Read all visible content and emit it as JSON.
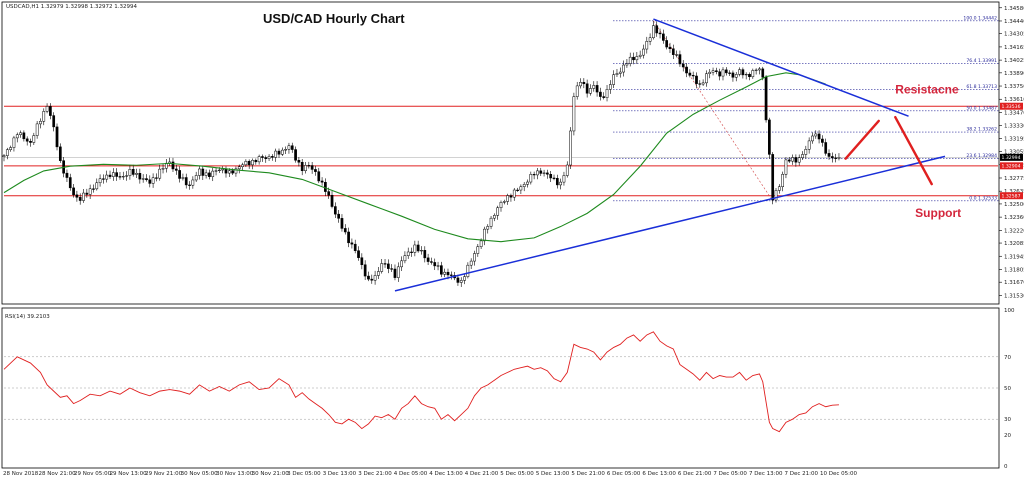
{
  "chart_data": [
    {
      "type": "candlestick",
      "symbol_header": "USDCAD,H1  1.32979 1.32998 1.32972 1.32994",
      "title": "USD/CAD Hourly Chart",
      "y_ticks": [
        "1.34580",
        "1.34440",
        "1.34305",
        "1.34165",
        "1.34025",
        "1.33890",
        "1.33750",
        "1.33610",
        "1.33470",
        "1.33330",
        "1.33195",
        "1.33055",
        "1.32915",
        "1.32775",
        "1.32635",
        "1.32500",
        "1.32360",
        "1.32220",
        "1.32085",
        "1.31945",
        "1.31805",
        "1.31670",
        "1.31530"
      ],
      "ylim": [
        1.3146,
        1.3462
      ],
      "x_ticks": [
        "28 Nov 2018",
        "28 Nov 21:00",
        "29 Nov 05:00",
        "29 Nov 13:00",
        "29 Nov 21:00",
        "30 Nov 05:00",
        "30 Nov 13:00",
        "30 Nov 21:00",
        "3 Dec 05:00",
        "3 Dec 13:00",
        "3 Dec 21:00",
        "4 Dec 05:00",
        "4 Dec 13:00",
        "4 Dec 21:00",
        "5 Dec 05:00",
        "5 Dec 13:00",
        "5 Dec 21:00",
        "6 Dec 05:00",
        "6 Dec 13:00",
        "6 Dec 21:00",
        "7 Dec 05:00",
        "7 Dec 13:00",
        "7 Dec 21:00",
        "10 Dec 05:00"
      ],
      "close_path": [
        [
          0,
          1.33
        ],
        [
          4,
          1.3325
        ],
        [
          8,
          1.3315
        ],
        [
          11,
          1.334
        ],
        [
          13,
          1.3355
        ],
        [
          15,
          1.333
        ],
        [
          17,
          1.3295
        ],
        [
          19,
          1.3275
        ],
        [
          21,
          1.326
        ],
        [
          23,
          1.3255
        ],
        [
          26,
          1.3265
        ],
        [
          29,
          1.3275
        ],
        [
          32,
          1.3282
        ],
        [
          35,
          1.3278
        ],
        [
          38,
          1.3284
        ],
        [
          41,
          1.3279
        ],
        [
          44,
          1.3272
        ],
        [
          47,
          1.3285
        ],
        [
          50,
          1.3295
        ],
        [
          53,
          1.3278
        ],
        [
          56,
          1.327
        ],
        [
          59,
          1.3285
        ],
        [
          62,
          1.328
        ],
        [
          65,
          1.3288
        ],
        [
          68,
          1.3282
        ],
        [
          71,
          1.329
        ],
        [
          74,
          1.3294
        ],
        [
          77,
          1.3298
        ],
        [
          80,
          1.33
        ],
        [
          83,
          1.3304
        ],
        [
          86,
          1.3312
        ],
        [
          88,
          1.3298
        ],
        [
          90,
          1.3288
        ],
        [
          92,
          1.329
        ],
        [
          94,
          1.3284
        ],
        [
          96,
          1.327
        ],
        [
          98,
          1.3258
        ],
        [
          100,
          1.324
        ],
        [
          102,
          1.3225
        ],
        [
          104,
          1.3212
        ],
        [
          106,
          1.32
        ],
        [
          108,
          1.3185
        ],
        [
          110,
          1.3168
        ],
        [
          112,
          1.3172
        ],
        [
          114,
          1.3188
        ],
        [
          116,
          1.3182
        ],
        [
          118,
          1.3175
        ],
        [
          120,
          1.319
        ],
        [
          122,
          1.3198
        ],
        [
          124,
          1.3205
        ],
        [
          126,
          1.3198
        ],
        [
          128,
          1.319
        ],
        [
          130,
          1.3185
        ],
        [
          132,
          1.3178
        ],
        [
          134,
          1.3176
        ],
        [
          136,
          1.317
        ],
        [
          138,
          1.3168
        ],
        [
          140,
          1.3182
        ],
        [
          142,
          1.3198
        ],
        [
          144,
          1.3212
        ],
        [
          146,
          1.3228
        ],
        [
          148,
          1.324
        ],
        [
          150,
          1.325
        ],
        [
          152,
          1.3258
        ],
        [
          154,
          1.3262
        ],
        [
          156,
          1.3268
        ],
        [
          158,
          1.3275
        ],
        [
          160,
          1.3282
        ],
        [
          162,
          1.3285
        ],
        [
          164,
          1.328
        ],
        [
          166,
          1.3276
        ],
        [
          168,
          1.3271
        ],
        [
          170,
          1.329
        ],
        [
          172,
          1.3366
        ],
        [
          174,
          1.338
        ],
        [
          176,
          1.337
        ],
        [
          178,
          1.3375
        ],
        [
          180,
          1.3362
        ],
        [
          182,
          1.337
        ],
        [
          184,
          1.3385
        ],
        [
          186,
          1.3392
        ],
        [
          188,
          1.34
        ],
        [
          190,
          1.3405
        ],
        [
          192,
          1.3408
        ],
        [
          194,
          1.342
        ],
        [
          196,
          1.3438
        ],
        [
          198,
          1.3428
        ],
        [
          200,
          1.3418
        ],
        [
          202,
          1.341
        ],
        [
          204,
          1.34
        ],
        [
          206,
          1.339
        ],
        [
          208,
          1.3383
        ],
        [
          210,
          1.3376
        ],
        [
          212,
          1.3386
        ],
        [
          214,
          1.3392
        ],
        [
          216,
          1.3388
        ],
        [
          218,
          1.339
        ],
        [
          220,
          1.3386
        ],
        [
          222,
          1.339
        ],
        [
          224,
          1.3386
        ],
        [
          226,
          1.339
        ],
        [
          228,
          1.3393
        ],
        [
          229,
          1.3384
        ],
        [
          231,
          1.33
        ],
        [
          232,
          1.3255
        ],
        [
          234,
          1.327
        ],
        [
          236,
          1.3295
        ],
        [
          238,
          1.3297
        ],
        [
          240,
          1.3298
        ],
        [
          242,
          1.3307
        ],
        [
          244,
          1.3325
        ],
        [
          246,
          1.332
        ],
        [
          248,
          1.3305
        ],
        [
          250,
          1.3298
        ],
        [
          252,
          1.32994
        ]
      ],
      "ma_path": [
        [
          0,
          1.3262
        ],
        [
          6,
          1.3275
        ],
        [
          12,
          1.3285
        ],
        [
          20,
          1.329
        ],
        [
          30,
          1.3292
        ],
        [
          40,
          1.3291
        ],
        [
          50,
          1.3293
        ],
        [
          60,
          1.329
        ],
        [
          70,
          1.3286
        ],
        [
          80,
          1.3283
        ],
        [
          90,
          1.3276
        ],
        [
          100,
          1.3263
        ],
        [
          110,
          1.325
        ],
        [
          120,
          1.3237
        ],
        [
          130,
          1.3223
        ],
        [
          140,
          1.3213
        ],
        [
          150,
          1.321
        ],
        [
          160,
          1.3214
        ],
        [
          168,
          1.3226
        ],
        [
          176,
          1.324
        ],
        [
          184,
          1.326
        ],
        [
          192,
          1.329
        ],
        [
          200,
          1.3325
        ],
        [
          208,
          1.3345
        ],
        [
          216,
          1.336
        ],
        [
          224,
          1.3374
        ],
        [
          230,
          1.3385
        ],
        [
          236,
          1.3389
        ],
        [
          240,
          1.3387
        ],
        [
          244,
          1.3382
        ],
        [
          248,
          1.3377
        ]
      ],
      "levels": [
        {
          "name": "resistance",
          "value": 1.33536
        },
        {
          "name": "current",
          "value": 1.32994
        },
        {
          "name": "mid",
          "value": 1.32904
        },
        {
          "name": "support",
          "value": 1.32587
        }
      ],
      "level_labels": [
        "1.33536",
        "1.32994",
        "1.32904",
        "1.32587"
      ],
      "fib_levels": [
        {
          "label": "100.0  1.34442",
          "value": 1.34442
        },
        {
          "label": "76.4  1.33991",
          "value": 1.33991
        },
        {
          "label": "61.8  1.33713",
          "value": 1.33713
        },
        {
          "label": "50.0  1.33487",
          "value": 1.33487
        },
        {
          "label": "38.2  1.33262",
          "value": 1.33262
        },
        {
          "label": "23.6  1.32984",
          "value": 1.32984
        },
        {
          "label": "0.0  1.32533",
          "value": 1.32533
        }
      ],
      "trendlines": [
        {
          "name": "bearish-trendline",
          "from": [
            196,
            1.3446
          ],
          "to": [
            273,
            1.3343
          ],
          "color": "#1a2fd8"
        },
        {
          "name": "bullish-trendline",
          "from": [
            118,
            1.31578
          ],
          "to": [
            284,
            1.33004
          ],
          "color": "#1a2fd8"
        }
      ],
      "annotations": [
        {
          "name": "resistance-label",
          "text": "Resistacne",
          "x": 269,
          "y": 1.3367
        },
        {
          "name": "support-label",
          "text": "Support",
          "x": 275,
          "y": 1.3236
        }
      ],
      "colors": {
        "candle": "#000000",
        "ma": "#1e8a1e",
        "trend": "#1a2fd8",
        "level": "#e02020",
        "fib": "#2a2a9a",
        "annotation": "#d4263c"
      }
    },
    {
      "type": "line",
      "header": "RSI(14) 39.2103",
      "y_ticks": [
        "100",
        "70",
        "50",
        "30",
        "20",
        "0"
      ],
      "ylim": [
        0,
        100
      ],
      "rsi_path": [
        [
          0,
          62
        ],
        [
          4,
          70
        ],
        [
          8,
          66
        ],
        [
          11,
          60
        ],
        [
          13,
          52
        ],
        [
          15,
          48
        ],
        [
          17,
          44
        ],
        [
          19,
          45
        ],
        [
          21,
          40
        ],
        [
          23,
          42
        ],
        [
          26,
          46
        ],
        [
          29,
          45
        ],
        [
          32,
          48
        ],
        [
          35,
          46
        ],
        [
          38,
          50
        ],
        [
          41,
          47
        ],
        [
          44,
          45
        ],
        [
          47,
          48
        ],
        [
          50,
          49
        ],
        [
          53,
          48
        ],
        [
          56,
          46
        ],
        [
          59,
          52
        ],
        [
          62,
          48
        ],
        [
          65,
          51
        ],
        [
          68,
          48
        ],
        [
          71,
          52
        ],
        [
          74,
          54
        ],
        [
          77,
          49
        ],
        [
          80,
          50
        ],
        [
          83,
          56
        ],
        [
          86,
          52
        ],
        [
          88,
          44
        ],
        [
          90,
          47
        ],
        [
          92,
          43
        ],
        [
          94,
          40
        ],
        [
          96,
          37
        ],
        [
          98,
          33
        ],
        [
          100,
          28
        ],
        [
          102,
          27
        ],
        [
          104,
          30
        ],
        [
          106,
          28
        ],
        [
          108,
          24
        ],
        [
          110,
          27
        ],
        [
          112,
          32
        ],
        [
          114,
          31
        ],
        [
          116,
          33
        ],
        [
          118,
          30
        ],
        [
          120,
          37
        ],
        [
          122,
          40
        ],
        [
          124,
          45
        ],
        [
          126,
          40
        ],
        [
          128,
          38
        ],
        [
          130,
          37
        ],
        [
          132,
          30
        ],
        [
          134,
          33
        ],
        [
          136,
          29
        ],
        [
          138,
          33
        ],
        [
          140,
          37
        ],
        [
          142,
          45
        ],
        [
          144,
          50
        ],
        [
          146,
          52
        ],
        [
          148,
          55
        ],
        [
          150,
          58
        ],
        [
          152,
          60
        ],
        [
          154,
          62
        ],
        [
          156,
          63
        ],
        [
          158,
          64
        ],
        [
          160,
          62
        ],
        [
          162,
          63
        ],
        [
          164,
          61
        ],
        [
          166,
          56
        ],
        [
          168,
          54
        ],
        [
          170,
          60
        ],
        [
          172,
          78
        ],
        [
          174,
          76
        ],
        [
          176,
          75
        ],
        [
          178,
          73
        ],
        [
          180,
          68
        ],
        [
          182,
          73
        ],
        [
          184,
          76
        ],
        [
          186,
          78
        ],
        [
          188,
          82
        ],
        [
          190,
          84
        ],
        [
          192,
          80
        ],
        [
          194,
          84
        ],
        [
          196,
          86
        ],
        [
          198,
          80
        ],
        [
          200,
          77
        ],
        [
          202,
          75
        ],
        [
          204,
          65
        ],
        [
          206,
          62
        ],
        [
          208,
          59
        ],
        [
          210,
          55
        ],
        [
          212,
          60
        ],
        [
          214,
          56
        ],
        [
          216,
          58
        ],
        [
          218,
          57
        ],
        [
          220,
          57
        ],
        [
          222,
          60
        ],
        [
          224,
          55
        ],
        [
          226,
          58
        ],
        [
          228,
          59
        ],
        [
          229,
          54
        ],
        [
          231,
          28
        ],
        [
          232,
          24
        ],
        [
          234,
          22
        ],
        [
          236,
          28
        ],
        [
          238,
          30
        ],
        [
          240,
          33
        ],
        [
          242,
          34
        ],
        [
          244,
          38
        ],
        [
          246,
          40
        ],
        [
          248,
          38
        ],
        [
          250,
          39
        ],
        [
          252,
          39.2
        ]
      ],
      "color": "#e02020"
    }
  ]
}
